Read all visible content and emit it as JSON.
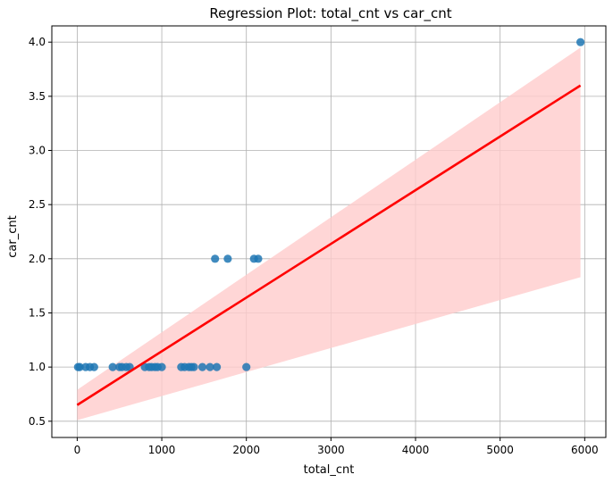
{
  "chart_data": {
    "type": "scatter",
    "title": "Regression Plot: total_cnt vs car_cnt",
    "xlabel": "total_cnt",
    "ylabel": "car_cnt",
    "xlim": [
      -300,
      6250
    ],
    "ylim": [
      0.35,
      4.15
    ],
    "x_ticks": [
      0,
      1000,
      2000,
      3000,
      4000,
      5000,
      6000
    ],
    "x_tick_labels": [
      "0",
      "1000",
      "2000",
      "3000",
      "4000",
      "5000",
      "6000"
    ],
    "y_ticks": [
      0.5,
      1.0,
      1.5,
      2.0,
      2.5,
      3.0,
      3.5,
      4.0
    ],
    "y_tick_labels": [
      "0.5",
      "1.0",
      "1.5",
      "2.0",
      "2.5",
      "3.0",
      "3.5",
      "4.0"
    ],
    "grid": true,
    "points": [
      {
        "x": 10,
        "y": 1
      },
      {
        "x": 30,
        "y": 1
      },
      {
        "x": 100,
        "y": 1
      },
      {
        "x": 150,
        "y": 1
      },
      {
        "x": 200,
        "y": 1
      },
      {
        "x": 420,
        "y": 1
      },
      {
        "x": 500,
        "y": 1
      },
      {
        "x": 530,
        "y": 1
      },
      {
        "x": 580,
        "y": 1
      },
      {
        "x": 620,
        "y": 1
      },
      {
        "x": 800,
        "y": 1
      },
      {
        "x": 850,
        "y": 1
      },
      {
        "x": 880,
        "y": 1
      },
      {
        "x": 920,
        "y": 1
      },
      {
        "x": 950,
        "y": 1
      },
      {
        "x": 1000,
        "y": 1
      },
      {
        "x": 1230,
        "y": 1
      },
      {
        "x": 1270,
        "y": 1
      },
      {
        "x": 1320,
        "y": 1
      },
      {
        "x": 1350,
        "y": 1
      },
      {
        "x": 1380,
        "y": 1
      },
      {
        "x": 1480,
        "y": 1
      },
      {
        "x": 1570,
        "y": 1
      },
      {
        "x": 1650,
        "y": 1
      },
      {
        "x": 2000,
        "y": 1
      },
      {
        "x": 1630,
        "y": 2
      },
      {
        "x": 1780,
        "y": 2
      },
      {
        "x": 2090,
        "y": 2
      },
      {
        "x": 2140,
        "y": 2
      },
      {
        "x": 5950,
        "y": 4
      }
    ],
    "regression_line": {
      "x": [
        0,
        5950
      ],
      "y": [
        0.65,
        3.6
      ]
    },
    "confidence_band": {
      "x": [
        0,
        5950
      ],
      "upper": [
        0.79,
        3.95
      ],
      "lower": [
        0.51,
        1.83
      ]
    },
    "colors": {
      "points": "#1f77b4",
      "regression_line": "#ff0000",
      "confidence_band": "#ffcccc",
      "grid": "#b0b0b0",
      "axes": "#000000"
    }
  }
}
